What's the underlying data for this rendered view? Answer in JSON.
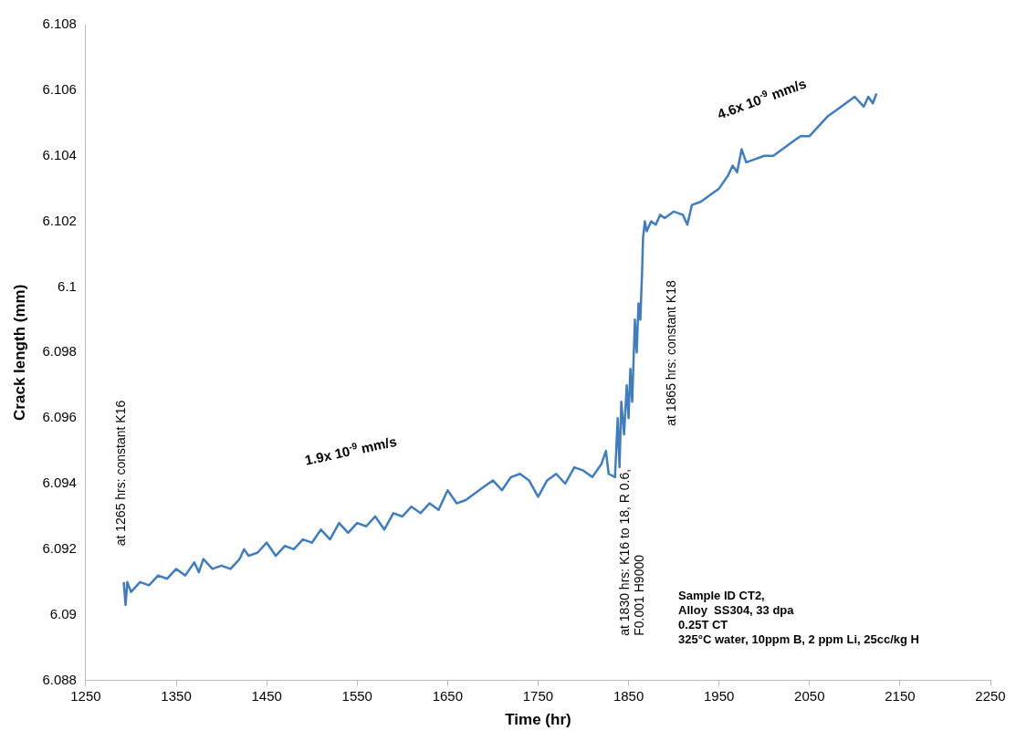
{
  "chart_data": {
    "type": "line",
    "xlabel": "Time (hr)",
    "ylabel": "Crack length (mm)",
    "xlim": [
      1250,
      2250
    ],
    "xticks": [
      1250,
      1350,
      1450,
      1550,
      1650,
      1750,
      1850,
      1950,
      2050,
      2150,
      2250
    ],
    "ylim": [
      6.088,
      6.108
    ],
    "yticks": [
      6.088,
      6.09,
      6.092,
      6.094,
      6.096,
      6.098,
      6.1,
      6.102,
      6.104,
      6.106,
      6.108
    ],
    "grid": false,
    "marker": "none",
    "line_style": "solid",
    "x": [
      1292,
      1294,
      1296,
      1300,
      1310,
      1320,
      1330,
      1340,
      1350,
      1360,
      1370,
      1375,
      1380,
      1390,
      1400,
      1410,
      1420,
      1425,
      1430,
      1440,
      1450,
      1460,
      1470,
      1480,
      1490,
      1500,
      1510,
      1520,
      1530,
      1540,
      1550,
      1560,
      1570,
      1580,
      1590,
      1600,
      1610,
      1620,
      1630,
      1640,
      1650,
      1660,
      1670,
      1680,
      1690,
      1700,
      1710,
      1720,
      1730,
      1740,
      1750,
      1760,
      1770,
      1780,
      1790,
      1800,
      1810,
      1820,
      1825,
      1828,
      1835,
      1838,
      1840,
      1842,
      1845,
      1848,
      1850,
      1852,
      1854,
      1857,
      1859,
      1861,
      1863,
      1865,
      1866,
      1868,
      1870,
      1875,
      1880,
      1885,
      1890,
      1900,
      1910,
      1915,
      1920,
      1930,
      1940,
      1950,
      1960,
      1965,
      1970,
      1975,
      1980,
      1990,
      2000,
      2010,
      2020,
      2030,
      2040,
      2050,
      2060,
      2070,
      2080,
      2090,
      2100,
      2110,
      2115,
      2120,
      2124
    ],
    "series": [
      {
        "color": "#3f7dc0",
        "values": [
          6.091,
          6.0903,
          6.091,
          6.0907,
          6.091,
          6.0909,
          6.0912,
          6.0911,
          6.0914,
          6.0912,
          6.0916,
          6.0913,
          6.0917,
          6.0914,
          6.0915,
          6.0914,
          6.0917,
          6.092,
          6.0918,
          6.0919,
          6.0922,
          6.0918,
          6.0921,
          6.092,
          6.0923,
          6.0922,
          6.0926,
          6.0923,
          6.0928,
          6.0925,
          6.0928,
          6.0927,
          6.093,
          6.0926,
          6.0931,
          6.093,
          6.0933,
          6.0931,
          6.0934,
          6.0932,
          6.0938,
          6.0934,
          6.0935,
          6.0937,
          6.0939,
          6.0941,
          6.0938,
          6.0942,
          6.0943,
          6.0941,
          6.0936,
          6.0941,
          6.0943,
          6.094,
          6.0945,
          6.0944,
          6.0942,
          6.0946,
          6.095,
          6.0943,
          6.0942,
          6.096,
          6.0945,
          6.0965,
          6.0955,
          6.097,
          6.096,
          6.0975,
          6.0965,
          6.099,
          6.098,
          6.0995,
          6.099,
          6.1005,
          6.1015,
          6.102,
          6.1017,
          6.102,
          6.1019,
          6.1022,
          6.1021,
          6.1023,
          6.1022,
          6.1019,
          6.1025,
          6.1026,
          6.1028,
          6.103,
          6.1034,
          6.1037,
          6.1035,
          6.1042,
          6.1038,
          6.1039,
          6.104,
          6.104,
          6.1042,
          6.1044,
          6.1046,
          6.1046,
          6.1049,
          6.1052,
          6.1054,
          6.1056,
          6.1058,
          6.1055,
          6.1058,
          6.1056,
          6.1059
        ]
      }
    ],
    "annotations": [
      "at 1265 hrs: constant K16",
      "at 1830 hrs: K16 to 18, R 0.6,\nF0.001 H9000",
      "at 1865 hrs: constant K18",
      "1.9x 10$^{-9}$ mm/s",
      "4.6x 10$^{-9}$ mm/s",
      "Sample ID CT2,\nAlloy  SS304, 33 dpa\n0.25T CT\n325°C water, 10ppm B, 2 ppm Li, 25cc/kg H"
    ]
  }
}
